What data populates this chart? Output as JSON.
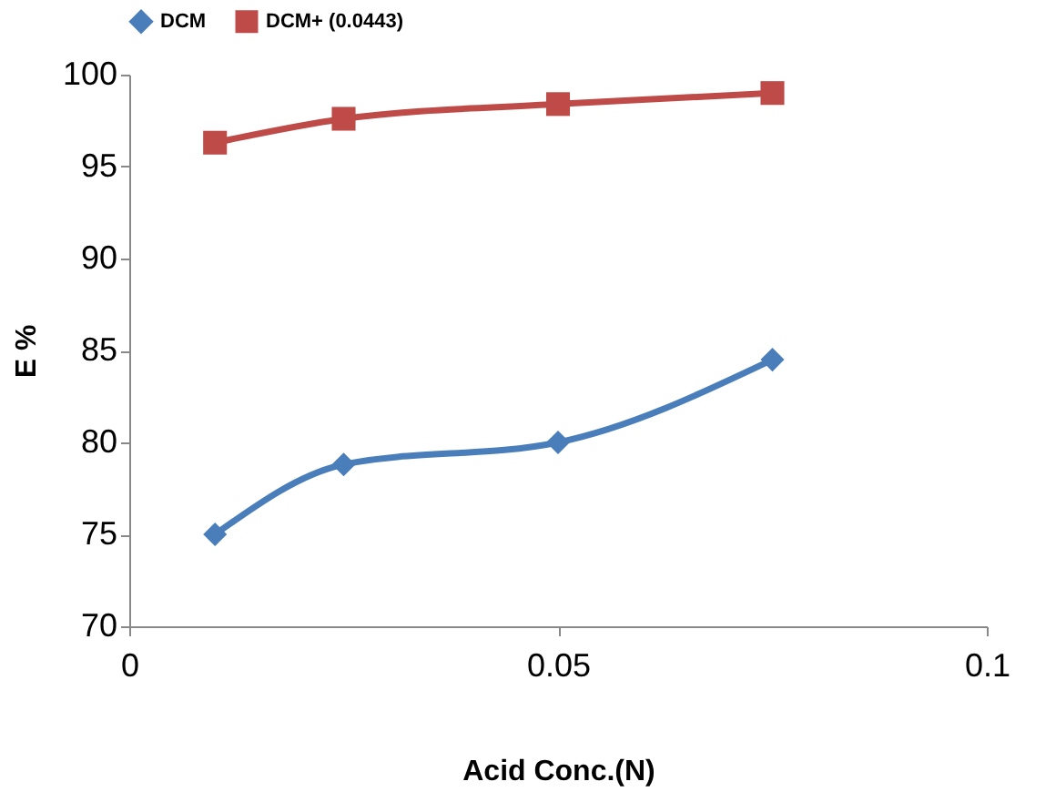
{
  "chart_data": {
    "type": "line",
    "xlabel": "Acid Conc.(N)",
    "ylabel": "E %",
    "x": [
      0.01,
      0.025,
      0.05,
      0.075
    ],
    "series": [
      {
        "name": "DCM",
        "color": "#4a7ebb",
        "values": [
          75,
          78.8,
          80,
          84.5
        ],
        "marker": "diamond"
      },
      {
        "name": "DCM+ (0.0443)",
        "color": "#be4b48",
        "values": [
          96.3,
          97.6,
          98.4,
          99.0
        ],
        "marker": "square"
      }
    ],
    "xlim": [
      0,
      0.1
    ],
    "xticks": [
      0,
      0.05,
      0.1
    ],
    "ylim": [
      70,
      100
    ],
    "yticks": [
      70,
      75,
      80,
      85,
      90,
      95,
      100
    ],
    "grid": false,
    "legend": "top",
    "line_style": "solid"
  }
}
